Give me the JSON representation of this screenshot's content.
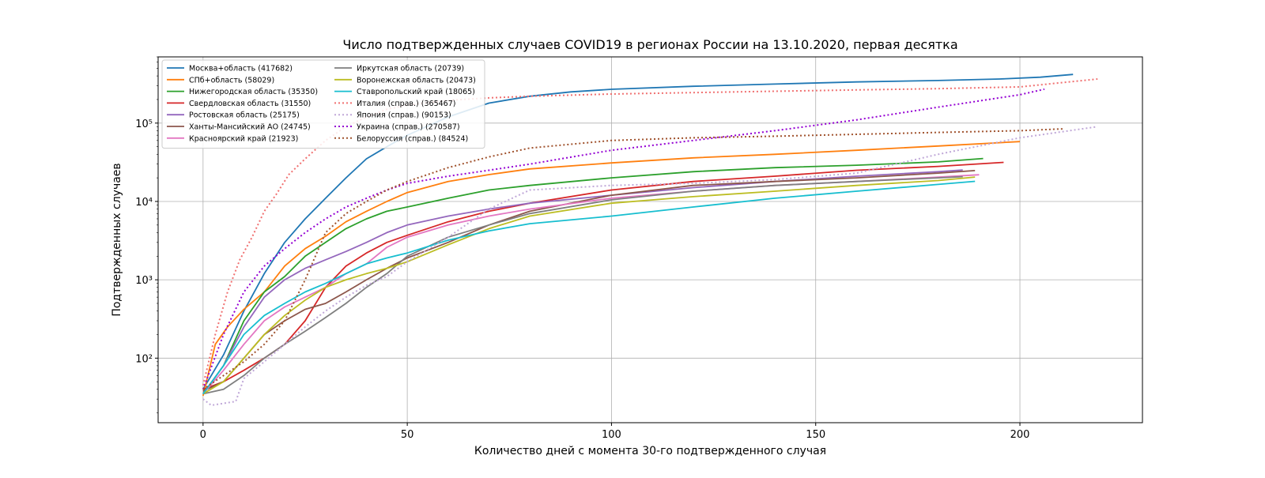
{
  "chart_data": {
    "type": "line",
    "title": "Число подтвержденных случаев COVID19 в регионах России на 13.10.2020, первая десятка",
    "xlabel": "Количество дней с момента 30-го подтвержденного случая",
    "ylabel": "Подтвержденных случаев",
    "yscale": "log",
    "xlim": [
      -11,
      230
    ],
    "ylim": [
      15,
      700000
    ],
    "x_ticks": [
      0,
      50,
      100,
      150,
      200
    ],
    "x_tick_labels": [
      "0",
      "50",
      "100",
      "150",
      "200"
    ],
    "y_ticks": [
      100,
      1000,
      10000,
      100000
    ],
    "y_tick_labels": [
      "10²",
      "10³",
      "10⁴",
      "10⁵"
    ],
    "grid": true,
    "legend_position": "top-left",
    "legend_columns": 2,
    "series": [
      {
        "name": "Москва+область (417682)",
        "color": "#1f77b4",
        "style": "solid",
        "x": [
          0,
          5,
          10,
          15,
          20,
          25,
          30,
          35,
          40,
          45,
          50,
          60,
          70,
          80,
          90,
          100,
          120,
          140,
          160,
          180,
          195,
          205,
          213
        ],
        "y": [
          40,
          110,
          400,
          1200,
          3000,
          6000,
          11000,
          20000,
          35000,
          50000,
          70000,
          120000,
          180000,
          220000,
          250000,
          270000,
          295000,
          315000,
          335000,
          350000,
          365000,
          385000,
          417682
        ]
      },
      {
        "name": "СПб+область (58029)",
        "color": "#ff7f0e",
        "style": "solid",
        "x": [
          0,
          3,
          6,
          10,
          15,
          20,
          25,
          30,
          35,
          40,
          45,
          50,
          60,
          70,
          80,
          100,
          120,
          140,
          160,
          180,
          200
        ],
        "y": [
          33,
          150,
          250,
          420,
          700,
          1500,
          2500,
          3600,
          5500,
          7500,
          10000,
          13000,
          18000,
          22000,
          26000,
          31000,
          36000,
          40000,
          45000,
          51000,
          58029
        ]
      },
      {
        "name": "Нижегородская область (35350)",
        "color": "#2ca02c",
        "style": "solid",
        "x": [
          0,
          5,
          10,
          15,
          20,
          25,
          30,
          35,
          40,
          45,
          50,
          60,
          70,
          80,
          100,
          120,
          140,
          160,
          180,
          191
        ],
        "y": [
          35,
          80,
          300,
          700,
          1100,
          2000,
          3000,
          4500,
          6000,
          7500,
          8500,
          11000,
          14000,
          16000,
          20000,
          24000,
          27000,
          29000,
          32000,
          35350
        ]
      },
      {
        "name": "Свердловская область (31550)",
        "color": "#d62728",
        "style": "solid",
        "x": [
          0,
          5,
          10,
          15,
          20,
          25,
          30,
          35,
          40,
          45,
          50,
          60,
          70,
          80,
          100,
          120,
          140,
          160,
          180,
          196
        ],
        "y": [
          40,
          50,
          70,
          100,
          150,
          300,
          800,
          1500,
          2200,
          3000,
          3700,
          5500,
          7500,
          9500,
          14000,
          18000,
          21000,
          25000,
          28000,
          31550
        ]
      },
      {
        "name": "Ростовская область (25175)",
        "color": "#9467bd",
        "style": "solid",
        "x": [
          0,
          5,
          10,
          15,
          20,
          25,
          30,
          35,
          40,
          45,
          50,
          60,
          70,
          80,
          100,
          120,
          140,
          160,
          180,
          186
        ],
        "y": [
          35,
          80,
          250,
          600,
          1000,
          1400,
          1800,
          2300,
          3000,
          4000,
          5000,
          6500,
          8000,
          9500,
          12000,
          15000,
          18000,
          21000,
          24000,
          25175
        ]
      },
      {
        "name": "Ханты-Мансийский АО (24745)",
        "color": "#8c564b",
        "style": "solid",
        "x": [
          0,
          5,
          10,
          15,
          20,
          25,
          30,
          35,
          40,
          45,
          50,
          60,
          70,
          80,
          100,
          120,
          140,
          160,
          180,
          189
        ],
        "y": [
          38,
          50,
          100,
          200,
          300,
          420,
          500,
          700,
          1000,
          1400,
          1900,
          3000,
          5000,
          7500,
          12000,
          16000,
          18000,
          20000,
          23000,
          24745
        ]
      },
      {
        "name": "Красноярский край (21923)",
        "color": "#e377c2",
        "style": "solid",
        "x": [
          0,
          5,
          10,
          15,
          20,
          25,
          30,
          35,
          40,
          45,
          50,
          60,
          70,
          80,
          100,
          120,
          140,
          160,
          180,
          190
        ],
        "y": [
          35,
          70,
          150,
          300,
          450,
          600,
          800,
          1200,
          1600,
          2600,
          3500,
          5000,
          6500,
          8000,
          11000,
          13500,
          16000,
          18000,
          20500,
          21923
        ]
      },
      {
        "name": "Иркутская область (20739)",
        "color": "#7f7f7f",
        "style": "solid",
        "x": [
          0,
          5,
          10,
          15,
          20,
          25,
          30,
          35,
          40,
          45,
          50,
          60,
          70,
          80,
          100,
          120,
          140,
          160,
          180,
          186
        ],
        "y": [
          35,
          40,
          60,
          100,
          150,
          220,
          330,
          500,
          800,
          1200,
          2000,
          3500,
          5000,
          7000,
          10500,
          13500,
          16000,
          18000,
          20000,
          20739
        ]
      },
      {
        "name": "Воронежская область (20473)",
        "color": "#bcbd22",
        "style": "solid",
        "x": [
          0,
          5,
          10,
          15,
          20,
          25,
          30,
          35,
          40,
          45,
          50,
          60,
          70,
          80,
          100,
          120,
          140,
          160,
          180,
          189
        ],
        "y": [
          35,
          50,
          100,
          200,
          350,
          550,
          800,
          1000,
          1200,
          1400,
          1700,
          2800,
          4500,
          6500,
          9500,
          11500,
          13500,
          16000,
          18500,
          20473
        ]
      },
      {
        "name": "Ставропольский край (18065)",
        "color": "#17becf",
        "style": "solid",
        "x": [
          0,
          5,
          10,
          15,
          20,
          25,
          30,
          35,
          40,
          45,
          50,
          60,
          70,
          80,
          100,
          120,
          140,
          160,
          180,
          189
        ],
        "y": [
          35,
          80,
          200,
          350,
          500,
          700,
          900,
          1200,
          1600,
          1900,
          2200,
          3200,
          4200,
          5200,
          6500,
          8500,
          11000,
          13500,
          16500,
          18065
        ]
      },
      {
        "name": "Италия (справ.) (365467)",
        "color": "#f07070",
        "style": "dotted",
        "x": [
          0,
          3,
          6,
          9,
          12,
          15,
          18,
          21,
          25,
          30,
          35,
          40,
          45,
          50,
          60,
          70,
          80,
          100,
          120,
          140,
          160,
          180,
          200,
          219
        ],
        "y": [
          45,
          200,
          700,
          1800,
          3500,
          7500,
          12500,
          22000,
          35000,
          60000,
          90000,
          120000,
          150000,
          170000,
          195000,
          210000,
          220000,
          235000,
          245000,
          255000,
          265000,
          275000,
          290000,
          365467
        ]
      },
      {
        "name": "Япония (справ.) (90153)",
        "color": "#c0a8d8",
        "style": "dotted",
        "x": [
          0,
          2,
          8,
          10,
          15,
          20,
          25,
          30,
          35,
          40,
          45,
          50,
          60,
          70,
          80,
          100,
          120,
          140,
          160,
          180,
          200,
          219
        ],
        "y": [
          30,
          25,
          28,
          55,
          90,
          150,
          250,
          400,
          600,
          850,
          1100,
          1700,
          3500,
          8000,
          14000,
          16000,
          17000,
          19000,
          23000,
          40000,
          65000,
          90153
        ]
      },
      {
        "name": "Украина (справ.) (270587)",
        "color": "#9400d3",
        "style": "dotted",
        "x": [
          0,
          5,
          10,
          15,
          20,
          25,
          30,
          35,
          40,
          45,
          50,
          60,
          70,
          80,
          100,
          120,
          140,
          160,
          180,
          200,
          206
        ],
        "y": [
          40,
          200,
          700,
          1500,
          2500,
          4000,
          6000,
          8500,
          11000,
          14000,
          17000,
          21000,
          25000,
          30000,
          45000,
          60000,
          80000,
          110000,
          160000,
          230000,
          270587
        ]
      },
      {
        "name": "Белоруссия (справ.) (84524)",
        "color": "#a0522d",
        "style": "dotted",
        "x": [
          0,
          5,
          10,
          15,
          20,
          25,
          30,
          35,
          40,
          45,
          50,
          60,
          70,
          80,
          100,
          120,
          140,
          160,
          180,
          200,
          211
        ],
        "y": [
          40,
          60,
          90,
          150,
          300,
          1000,
          4000,
          7000,
          10000,
          14000,
          18000,
          27000,
          37000,
          48000,
          60000,
          65000,
          68000,
          72000,
          76000,
          80000,
          84524
        ]
      }
    ]
  }
}
